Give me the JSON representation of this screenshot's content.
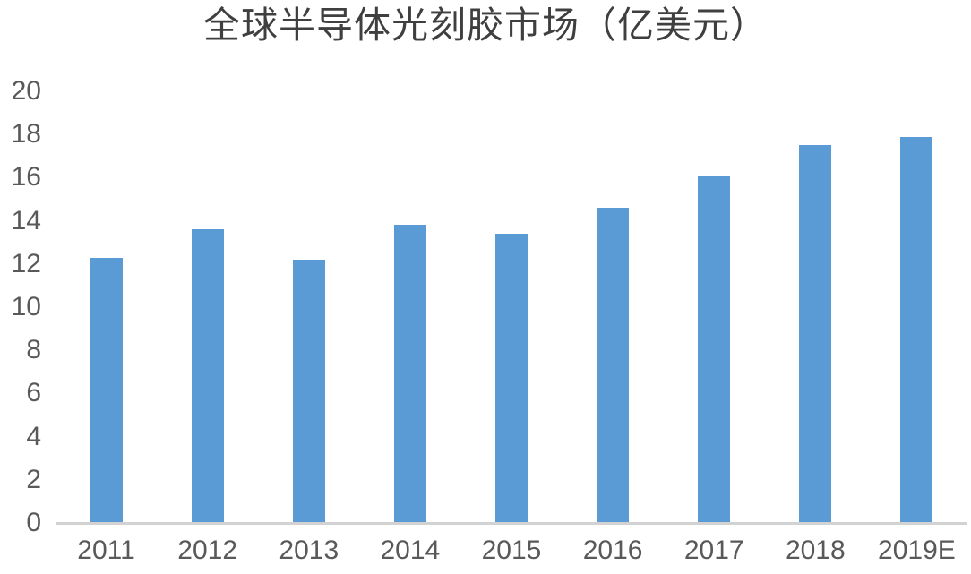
{
  "chart_data": {
    "type": "bar",
    "title": "全球半导体光刻胶市场（亿美元）",
    "categories": [
      "2011",
      "2012",
      "2013",
      "2014",
      "2015",
      "2016",
      "2017",
      "2018",
      "2019E"
    ],
    "values": [
      12.3,
      13.6,
      12.2,
      13.8,
      13.4,
      14.6,
      16.1,
      17.5,
      17.9
    ],
    "series_name": "全球半导体光刻胶市场规模",
    "unit": "亿美元",
    "xlabel": "",
    "ylabel": "",
    "ylim": [
      0,
      20
    ],
    "ytick_step": 2,
    "yticks": [
      0,
      2,
      4,
      6,
      8,
      10,
      12,
      14,
      16,
      18,
      20
    ],
    "grid": false,
    "legend_position": "none",
    "colors": {
      "bar": "#5b9bd5",
      "axis_line": "#d2d2d2",
      "tick_labels": "#595959",
      "title": "#3f3f3f",
      "background": "#ffffff"
    }
  }
}
